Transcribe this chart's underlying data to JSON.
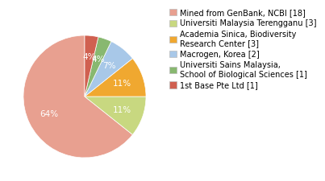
{
  "labels": [
    "Mined from GenBank, NCBI [18]",
    "Universiti Malaysia Terengganu [3]",
    "Academia Sinica, Biodiversity\nResearch Center [3]",
    "Macrogen, Korea [2]",
    "Universiti Sains Malaysia,\nSchool of Biological Sciences [1]",
    "1st Base Pte Ltd [1]"
  ],
  "values": [
    18,
    3,
    3,
    2,
    1,
    1
  ],
  "colors": [
    "#e8a090",
    "#c8d880",
    "#f0a830",
    "#a8c8e8",
    "#88b870",
    "#d06050"
  ],
  "startangle": 90,
  "background_color": "#ffffff",
  "text_fontsize": 7.5,
  "legend_fontsize": 7.0
}
